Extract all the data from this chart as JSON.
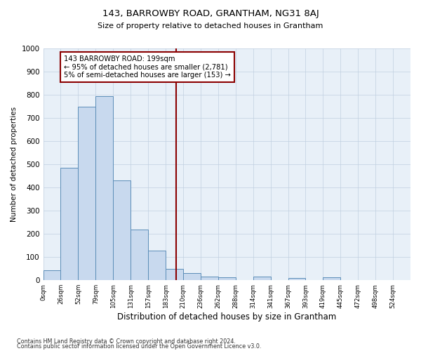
{
  "title": "143, BARROWBY ROAD, GRANTHAM, NG31 8AJ",
  "subtitle": "Size of property relative to detached houses in Grantham",
  "xlabel": "Distribution of detached houses by size in Grantham",
  "ylabel": "Number of detached properties",
  "categories": [
    "0sqm",
    "26sqm",
    "52sqm",
    "79sqm",
    "105sqm",
    "131sqm",
    "157sqm",
    "183sqm",
    "210sqm",
    "236sqm",
    "262sqm",
    "288sqm",
    "314sqm",
    "341sqm",
    "367sqm",
    "393sqm",
    "419sqm",
    "445sqm",
    "472sqm",
    "498sqm",
    "524sqm"
  ],
  "bar_values": [
    44,
    484,
    750,
    795,
    430,
    220,
    128,
    50,
    32,
    17,
    12,
    0,
    15,
    0,
    10,
    0,
    12,
    0,
    0,
    0,
    0
  ],
  "bar_color": "#c8d9ee",
  "bar_edge_color": "#5b8db8",
  "property_line_x": 7,
  "property_line_color": "#8b0000",
  "annotation_text": "143 BARROWBY ROAD: 199sqm\n← 95% of detached houses are smaller (2,781)\n5% of semi-detached houses are larger (153) →",
  "annotation_box_color": "#8b0000",
  "annotation_text_color": "#000000",
  "ylim": [
    0,
    1000
  ],
  "yticks": [
    0,
    100,
    200,
    300,
    400,
    500,
    600,
    700,
    800,
    900,
    1000
  ],
  "grid_color": "#c0cfe0",
  "bg_color": "#e8f0f8",
  "footer_line1": "Contains HM Land Registry data © Crown copyright and database right 2024.",
  "footer_line2": "Contains public sector information licensed under the Open Government Licence v3.0."
}
